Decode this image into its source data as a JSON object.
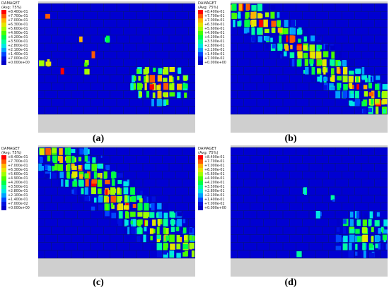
{
  "legend": {
    "title_line1": "DAMAGET",
    "title_line2": "(Avg: 75%)",
    "entries": [
      {
        "label": "+8.400e-01",
        "color": "#ff0000"
      },
      {
        "label": "+7.700e-01",
        "color": "#ff5a00"
      },
      {
        "label": "+7.000e-01",
        "color": "#ffb400"
      },
      {
        "label": "+6.300e-01",
        "color": "#e6e600"
      },
      {
        "label": "+5.600e-01",
        "color": "#a0ff00"
      },
      {
        "label": "+4.900e-01",
        "color": "#46ff00"
      },
      {
        "label": "+4.200e-01",
        "color": "#00ff46"
      },
      {
        "label": "+3.500e-01",
        "color": "#00ffa0"
      },
      {
        "label": "+2.800e-01",
        "color": "#00e6e6"
      },
      {
        "label": "+2.100e-01",
        "color": "#00a0ff"
      },
      {
        "label": "+1.400e-01",
        "color": "#0046ff"
      },
      {
        "label": "+7.000e-02",
        "color": "#0010e0"
      },
      {
        "label": "+0.000e+00",
        "color": "#0000c8"
      }
    ]
  },
  "panels": [
    {
      "id": "a",
      "caption": "(a)"
    },
    {
      "id": "b",
      "caption": "(b)"
    },
    {
      "id": "c",
      "caption": "(c)"
    },
    {
      "id": "d",
      "caption": "(d)"
    }
  ]
}
